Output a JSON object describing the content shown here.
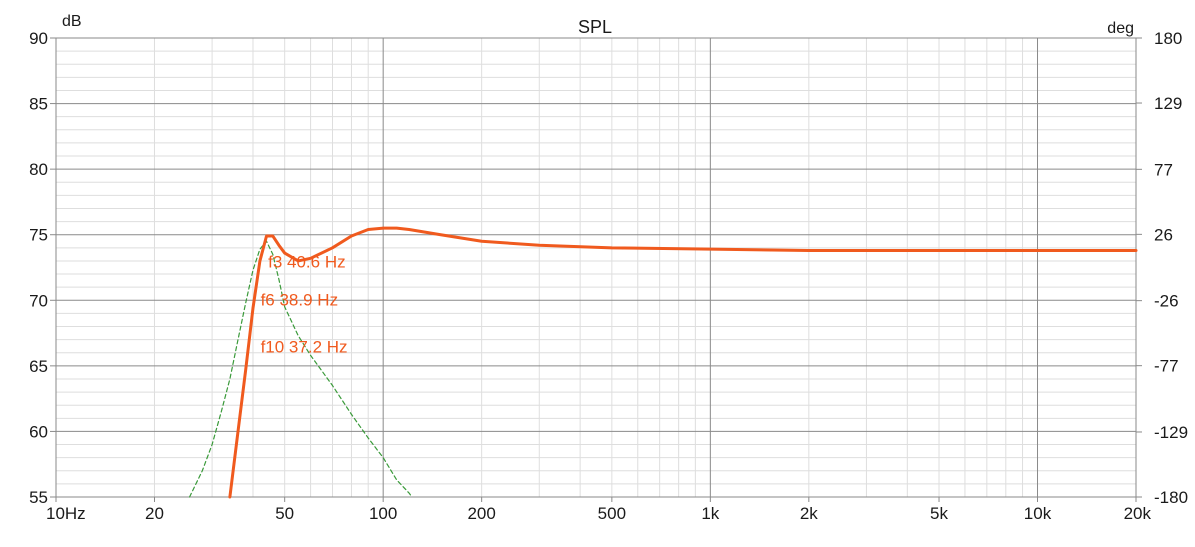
{
  "chart_data": {
    "type": "line",
    "title": "SPL",
    "y_unit": "dB",
    "y2_unit": "deg",
    "x_scale": "log",
    "xlim": [
      10,
      20000
    ],
    "ylim": [
      55,
      90
    ],
    "y2lim": [
      -180,
      180
    ],
    "x_ticks": [
      {
        "value": 10,
        "label": "10Hz"
      },
      {
        "value": 20,
        "label": "20"
      },
      {
        "value": 50,
        "label": "50"
      },
      {
        "value": 100,
        "label": "100"
      },
      {
        "value": 200,
        "label": "200"
      },
      {
        "value": 500,
        "label": "500"
      },
      {
        "value": 1000,
        "label": "1k"
      },
      {
        "value": 2000,
        "label": "2k"
      },
      {
        "value": 5000,
        "label": "5k"
      },
      {
        "value": 10000,
        "label": "10k"
      },
      {
        "value": 20000,
        "label": "20k"
      }
    ],
    "y_ticks": [
      {
        "value": 90,
        "label": "90"
      },
      {
        "value": 85,
        "label": "85"
      },
      {
        "value": 80,
        "label": "80"
      },
      {
        "value": 75,
        "label": "75"
      },
      {
        "value": 70,
        "label": "70"
      },
      {
        "value": 65,
        "label": "65"
      },
      {
        "value": 60,
        "label": "60"
      },
      {
        "value": 55,
        "label": "55"
      }
    ],
    "y2_ticks": [
      {
        "value": 180,
        "label": "180"
      },
      {
        "value": 129,
        "label": "129"
      },
      {
        "value": 77,
        "label": "77"
      },
      {
        "value": 26,
        "label": "26"
      },
      {
        "value": -26,
        "label": "-26"
      },
      {
        "value": -77,
        "label": "-77"
      },
      {
        "value": -129,
        "label": "-129"
      },
      {
        "value": -180,
        "label": "-180"
      }
    ],
    "grid": true,
    "series": [
      {
        "color": "#f05a1e",
        "style": "solid",
        "x": [
          34,
          36,
          38,
          40,
          42,
          44,
          46,
          48,
          50,
          55,
          60,
          70,
          80,
          90,
          100,
          110,
          120,
          150,
          200,
          300,
          500,
          1000,
          2000,
          5000,
          10000,
          20000
        ],
        "y": [
          55.0,
          60.0,
          64.7,
          69.4,
          73.0,
          74.9,
          74.9,
          74.2,
          73.6,
          73.0,
          73.2,
          74.0,
          74.9,
          75.4,
          75.5,
          75.5,
          75.4,
          75.0,
          74.5,
          74.2,
          74.0,
          73.9,
          73.8,
          73.8,
          73.8,
          73.8
        ]
      },
      {
        "color": "#3a9a3a",
        "style": "dashed",
        "x": [
          25.6,
          28,
          30,
          32,
          34,
          36,
          38,
          40,
          42,
          44,
          46,
          48,
          50,
          55,
          60,
          70,
          80,
          90,
          100,
          110,
          120,
          122.5
        ],
        "y": [
          55.0,
          57.0,
          59.0,
          61.5,
          64.0,
          67.0,
          69.8,
          72.3,
          73.9,
          74.5,
          73.5,
          71.6,
          69.5,
          67.3,
          65.8,
          63.5,
          61.3,
          59.5,
          58.0,
          56.3,
          55.3,
          55.0
        ]
      }
    ],
    "annotations": [
      {
        "text": "f3 40.6 Hz",
        "x": 44.5,
        "y": 72.5,
        "color": "#f05a1e"
      },
      {
        "text": "f6 38.9 Hz",
        "x": 42.2,
        "y": 69.6,
        "color": "#f05a1e"
      },
      {
        "text": "f10 37.2 Hz",
        "x": 42.2,
        "y": 66.0,
        "color": "#f05a1e"
      }
    ]
  }
}
